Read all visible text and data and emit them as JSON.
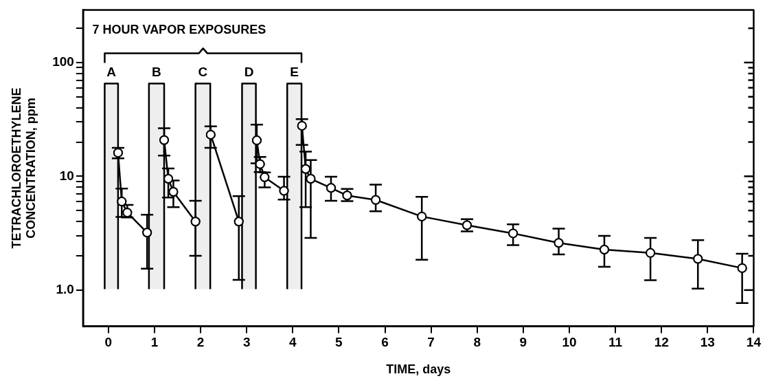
{
  "chart_data": {
    "type": "line",
    "xlabel": "TIME, days",
    "ylabel": "TETRACHLOROETHYLENE\nCONCENTRATION, ppm",
    "annotations": [
      "7 HOUR VAPOR EXPOSURES"
    ],
    "log": "y",
    "grid": false,
    "legend": false,
    "marker": "circle",
    "line_style": "solid",
    "xlim": [
      -0.55,
      14
    ],
    "xticks": [
      0,
      1,
      2,
      3,
      4,
      5,
      6,
      7,
      8,
      9,
      10,
      11,
      12,
      13,
      14
    ],
    "ylim": [
      0.48,
      290
    ],
    "yticks": [
      {
        "value": 1,
        "label": "1.0"
      },
      {
        "value": 2,
        "label": null
      },
      {
        "value": 3,
        "label": null
      },
      {
        "value": 4,
        "label": null
      },
      {
        "value": 5,
        "label": null
      },
      {
        "value": 6,
        "label": null
      },
      {
        "value": 7,
        "label": null
      },
      {
        "value": 8,
        "label": null
      },
      {
        "value": 9,
        "label": null
      },
      10,
      {
        "value": 20,
        "label": null
      },
      {
        "value": 30,
        "label": null
      },
      {
        "value": 40,
        "label": null
      },
      {
        "value": 50,
        "label": null
      },
      {
        "value": 60,
        "label": null
      },
      {
        "value": 70,
        "label": null
      },
      {
        "value": 80,
        "label": null
      },
      {
        "value": 90,
        "label": null
      },
      100,
      {
        "value": 200,
        "label": null
      }
    ],
    "bands": [
      {
        "axis": "x",
        "from": -0.08,
        "to": 0.21,
        "label": "A",
        "color": "#eeeeee"
      },
      {
        "axis": "x",
        "from": 0.88,
        "to": 1.21,
        "label": "B",
        "color": "#eeeeee"
      },
      {
        "axis": "x",
        "from": 1.89,
        "to": 2.21,
        "label": "C",
        "color": "#eeeeee"
      },
      {
        "axis": "x",
        "from": 2.9,
        "to": 3.2,
        "label": "D",
        "color": "#eeeeee"
      },
      {
        "axis": "x",
        "from": 3.88,
        "to": 4.19,
        "label": "E",
        "color": "#eeeeee"
      }
    ],
    "series": [
      {
        "color": "#000000",
        "x": [
          0.21,
          0.29,
          0.41,
          0.84
        ],
        "values": [
          16.1,
          6.0,
          4.8,
          3.2
        ],
        "errors": [
          [
            14.4,
            17.8
          ],
          [
            4.4,
            7.8
          ],
          [
            4.35,
            5.6
          ],
          [
            1.54,
            4.6
          ]
        ]
      },
      {
        "color": "#000000",
        "x": [
          1.21,
          1.3,
          1.41,
          1.89
        ],
        "values": [
          20.8,
          9.5,
          7.3,
          4.0
        ],
        "errors": [
          [
            15.2,
            26.4
          ],
          [
            6.5,
            11.7
          ],
          [
            5.35,
            9.2
          ],
          [
            2.0,
            6.1
          ]
        ]
      },
      {
        "color": "#000000",
        "x": [
          2.22,
          2.83
        ],
        "values": [
          23.2,
          4.0
        ],
        "errors": [
          [
            17.8,
            27.5
          ],
          [
            1.23,
            6.7
          ]
        ]
      },
      {
        "color": "#000000",
        "x": [
          3.22,
          3.29,
          3.39,
          3.81
        ],
        "values": [
          20.7,
          12.8,
          9.8,
          7.45
        ],
        "errors": [
          [
            13,
            28.4
          ],
          [
            10.9,
            14.8
          ],
          [
            8.0,
            10.8
          ],
          [
            6.25,
            9.9
          ]
        ]
      },
      {
        "color": "#000000",
        "x": [
          4.2,
          4.28,
          4.39,
          4.83,
          5.18,
          5.8,
          6.8,
          7.78,
          8.78,
          9.77,
          10.76,
          11.76,
          12.79,
          13.75
        ],
        "values": [
          27.8,
          11.6,
          9.5,
          7.9,
          6.78,
          6.2,
          4.43,
          3.72,
          3.15,
          2.6,
          2.27,
          2.12,
          1.88,
          1.56
        ],
        "errors": [
          [
            18.9,
            31.8
          ],
          [
            5.35,
            16.5
          ],
          [
            2.87,
            13.9
          ],
          [
            6.1,
            9.9
          ],
          [
            6.04,
            7.74
          ],
          [
            4.92,
            8.45
          ],
          [
            1.85,
            6.6
          ],
          [
            3.28,
            4.2
          ],
          [
            2.48,
            3.78
          ],
          [
            2.06,
            3.47
          ],
          [
            1.6,
            3.0
          ],
          [
            1.22,
            2.87
          ],
          [
            1.03,
            2.75
          ],
          [
            0.77,
            2.09
          ]
        ]
      }
    ]
  }
}
